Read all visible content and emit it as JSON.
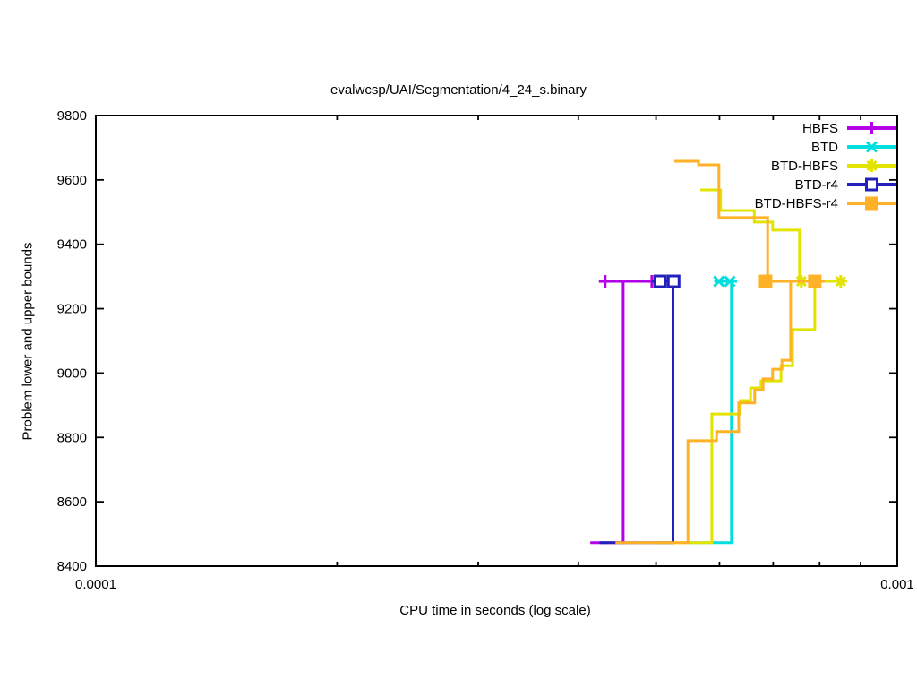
{
  "title": "evalwcsp/UAI/Segmentation/4_24_s.binary",
  "chart_data": {
    "type": "line",
    "title": "evalwcsp/UAI/Segmentation/4_24_s.binary",
    "xlabel": "CPU time in seconds (log scale)",
    "ylabel": "Problem lower and upper bounds",
    "grid": false,
    "legend_position": "top-right",
    "optimum_value": 9285,
    "initial_lower_bound": 8473,
    "x_axis": {
      "scale": "log",
      "min": 0.0001,
      "max": 0.001,
      "major_ticks": [
        {
          "value": 0.0001,
          "label": "0.0001"
        },
        {
          "value": 0.001,
          "label": "0.001"
        }
      ],
      "minor_tick_values": [
        0.0002,
        0.0003,
        0.0004,
        0.0005,
        0.0006,
        0.0007,
        0.0008,
        0.0009
      ]
    },
    "y_axis": {
      "min": 8400,
      "max": 9800,
      "tick_step": 200,
      "ticks": [
        {
          "value": 8400,
          "label": "8400"
        },
        {
          "value": 8600,
          "label": "8600"
        },
        {
          "value": 8800,
          "label": "8800"
        },
        {
          "value": 9000,
          "label": "9000"
        },
        {
          "value": 9200,
          "label": "9200"
        },
        {
          "value": 9400,
          "label": "9400"
        },
        {
          "value": 9600,
          "label": "9600"
        },
        {
          "value": 9800,
          "label": "9800"
        }
      ]
    },
    "series": [
      {
        "name": "HBFS",
        "color": "#b300e6",
        "marker": "plus",
        "lower_bound": [
          [
            0.000414,
            8473
          ],
          [
            0.000455,
            8473
          ],
          [
            0.000455,
            9285
          ]
        ],
        "upper_bound": [
          [
            0.000428,
            9285
          ],
          [
            0.000499,
            9285
          ]
        ],
        "marker_points": [
          [
            0.000432,
            9285
          ],
          [
            0.000494,
            9285
          ]
        ]
      },
      {
        "name": "BTD",
        "color": "#00dede",
        "marker": "cross",
        "lower_bound": [
          [
            0.00055,
            8473
          ],
          [
            0.000621,
            8473
          ],
          [
            0.000621,
            9285
          ]
        ],
        "upper_bound": [
          [
            0.000591,
            9285
          ],
          [
            0.000631,
            9285
          ]
        ],
        "marker_points": [
          [
            0.000599,
            9285
          ],
          [
            0.000618,
            9285
          ]
        ]
      },
      {
        "name": "BTD-HBFS",
        "color": "#e3e300",
        "marker": "asterisk",
        "lower_bound": [
          [
            0.0005,
            8473
          ],
          [
            0.000587,
            8473
          ],
          [
            0.000587,
            8873
          ],
          [
            0.000637,
            8873
          ],
          [
            0.000637,
            8915
          ],
          [
            0.000656,
            8915
          ],
          [
            0.000656,
            8954
          ],
          [
            0.000676,
            8954
          ],
          [
            0.000676,
            8976
          ],
          [
            0.000716,
            8976
          ],
          [
            0.000716,
            9023
          ],
          [
            0.00074,
            9023
          ],
          [
            0.00074,
            9135
          ],
          [
            0.000789,
            9135
          ],
          [
            0.000789,
            9285
          ]
        ],
        "upper_bound": [
          [
            0.000568,
            9569
          ],
          [
            0.000602,
            9569
          ],
          [
            0.000602,
            9505
          ],
          [
            0.000663,
            9505
          ],
          [
            0.000663,
            9469
          ],
          [
            0.000699,
            9469
          ],
          [
            0.000699,
            9444
          ],
          [
            0.000755,
            9444
          ],
          [
            0.000755,
            9285
          ],
          [
            0.00085,
            9285
          ]
        ],
        "marker_points": [
          [
            0.000759,
            9285
          ],
          [
            0.00085,
            9285
          ]
        ]
      },
      {
        "name": "BTD-r4",
        "color": "#2222bb",
        "marker": "square-open",
        "lower_bound": [
          [
            0.000425,
            8473
          ],
          [
            0.000525,
            8473
          ],
          [
            0.000525,
            9285
          ]
        ],
        "upper_bound": [
          [
            0.000494,
            9285
          ],
          [
            0.000534,
            9285
          ]
        ],
        "marker_points": [
          [
            0.000506,
            9285
          ],
          [
            0.000526,
            9285
          ]
        ]
      },
      {
        "name": "BTD-HBFS-r4",
        "color": "#ffb127",
        "marker": "square-filled",
        "lower_bound": [
          [
            0.000445,
            8473
          ],
          [
            0.000548,
            8473
          ],
          [
            0.000548,
            8790
          ],
          [
            0.000595,
            8790
          ],
          [
            0.000595,
            8818
          ],
          [
            0.000634,
            8818
          ],
          [
            0.000634,
            8907
          ],
          [
            0.000664,
            8907
          ],
          [
            0.000664,
            8948
          ],
          [
            0.00068,
            8948
          ],
          [
            0.00068,
            8982
          ],
          [
            0.000699,
            8982
          ],
          [
            0.000699,
            9012
          ],
          [
            0.000718,
            9012
          ],
          [
            0.000718,
            9040
          ],
          [
            0.000736,
            9040
          ],
          [
            0.000736,
            9285
          ]
        ],
        "upper_bound": [
          [
            0.000527,
            9658
          ],
          [
            0.000565,
            9658
          ],
          [
            0.000565,
            9647
          ],
          [
            0.000599,
            9647
          ],
          [
            0.000599,
            9483
          ],
          [
            0.000689,
            9483
          ],
          [
            0.000689,
            9285
          ],
          [
            0.000812,
            9285
          ]
        ],
        "marker_points": [
          [
            0.000685,
            9285
          ],
          [
            0.000789,
            9285
          ]
        ]
      }
    ]
  }
}
